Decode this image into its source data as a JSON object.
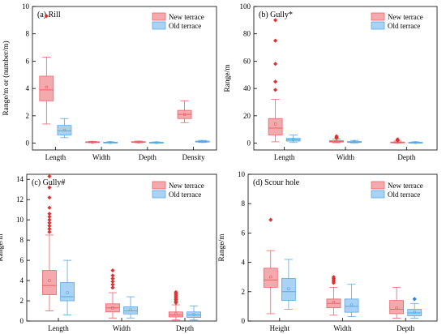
{
  "legend": {
    "items": [
      {
        "label": "New terrace",
        "fill": "#f4a9ad",
        "stroke": "#e8646b"
      },
      {
        "label": "Old terrace",
        "fill": "#a8d3f5",
        "stroke": "#5aa8e6"
      }
    ]
  },
  "colors": {
    "new_outlier": "#e03232",
    "old_outlier": "#2f7fd6",
    "median": "#d84a52"
  },
  "chart_data": [
    {
      "type": "box",
      "title": "(a) Rill",
      "ylabel": "Range/m or (number/m)",
      "ylim": [
        -0.5,
        10
      ],
      "yticks": [
        0,
        2,
        4,
        6,
        8,
        10
      ],
      "categories": [
        "Length",
        "Width",
        "Depth",
        "Density"
      ],
      "series": [
        {
          "name": "New terrace",
          "boxes": [
            {
              "whisker_low": 1.4,
              "q1": 3.1,
              "median": 3.9,
              "mean": 4.1,
              "q3": 4.9,
              "whisker_high": 6.3,
              "outliers": [
                9.3
              ]
            },
            {
              "whisker_low": 0.03,
              "q1": 0.05,
              "median": 0.07,
              "mean": 0.07,
              "q3": 0.1,
              "whisker_high": 0.13,
              "outliers": []
            },
            {
              "whisker_low": 0.03,
              "q1": 0.05,
              "median": 0.08,
              "mean": 0.08,
              "q3": 0.11,
              "whisker_high": 0.15,
              "outliers": []
            },
            {
              "whisker_low": 1.5,
              "q1": 1.8,
              "median": 2.1,
              "mean": 2.1,
              "q3": 2.4,
              "whisker_high": 3.1,
              "outliers": []
            }
          ]
        },
        {
          "name": "Old terrace",
          "boxes": [
            {
              "whisker_low": 0.4,
              "q1": 0.6,
              "median": 0.9,
              "mean": 0.95,
              "q3": 1.3,
              "whisker_high": 1.8,
              "outliers": []
            },
            {
              "whisker_low": 0.02,
              "q1": 0.04,
              "median": 0.05,
              "mean": 0.05,
              "q3": 0.07,
              "whisker_high": 0.1,
              "outliers": []
            },
            {
              "whisker_low": 0.01,
              "q1": 0.03,
              "median": 0.04,
              "mean": 0.04,
              "q3": 0.06,
              "whisker_high": 0.09,
              "outliers": []
            },
            {
              "whisker_low": 0.05,
              "q1": 0.08,
              "median": 0.12,
              "mean": 0.12,
              "q3": 0.15,
              "whisker_high": 0.2,
              "outliers": []
            }
          ]
        }
      ]
    },
    {
      "type": "box",
      "title": "(b) Gully*",
      "ylabel": "Range/m",
      "ylim": [
        -5,
        100
      ],
      "yticks": [
        0,
        20,
        40,
        60,
        80,
        100
      ],
      "categories": [
        "Length",
        "Width",
        "Depth"
      ],
      "series": [
        {
          "name": "New terrace",
          "boxes": [
            {
              "whisker_low": 1,
              "q1": 6,
              "median": 11,
              "mean": 14,
              "q3": 18,
              "whisker_high": 32,
              "outliers": [
                39,
                45,
                58,
                75,
                90
              ]
            },
            {
              "whisker_low": 0.3,
              "q1": 0.8,
              "median": 1.2,
              "mean": 1.4,
              "q3": 1.8,
              "whisker_high": 3,
              "outliers": [
                3.8,
                4.3,
                5.0
              ]
            },
            {
              "whisker_low": 0.1,
              "q1": 0.3,
              "median": 0.5,
              "mean": 0.6,
              "q3": 0.8,
              "whisker_high": 1.5,
              "outliers": [
                2.0,
                2.5,
                2.8
              ]
            }
          ]
        },
        {
          "name": "Old terrace",
          "boxes": [
            {
              "whisker_low": 0.5,
              "q1": 1.5,
              "median": 2.5,
              "mean": 2.8,
              "q3": 3.5,
              "whisker_high": 6,
              "outliers": []
            },
            {
              "whisker_low": 0.2,
              "q1": 0.5,
              "median": 0.8,
              "mean": 0.9,
              "q3": 1.2,
              "whisker_high": 2,
              "outliers": []
            },
            {
              "whisker_low": 0.1,
              "q1": 0.25,
              "median": 0.4,
              "mean": 0.45,
              "q3": 0.6,
              "whisker_high": 1,
              "outliers": []
            }
          ]
        }
      ]
    },
    {
      "type": "box",
      "title": "(c) Gully#",
      "ylabel": "Range/m",
      "ylim": [
        0,
        14.5
      ],
      "yticks": [
        0,
        2,
        4,
        6,
        8,
        10,
        12,
        14
      ],
      "categories": [
        "Length",
        "Width",
        "Depth"
      ],
      "series": [
        {
          "name": "New terrace",
          "boxes": [
            {
              "whisker_low": 1.0,
              "q1": 2.6,
              "median": 3.5,
              "mean": 4.0,
              "q3": 5.0,
              "whisker_high": 8.5,
              "outliers": [
                8.8,
                9.1,
                9.4,
                9.7,
                10.0,
                10.3,
                10.6,
                11.2,
                12.2,
                13.2,
                14.3
              ]
            },
            {
              "whisker_low": 0.3,
              "q1": 0.9,
              "median": 1.3,
              "mean": 1.3,
              "q3": 1.7,
              "whisker_high": 2.8,
              "outliers": [
                3.3,
                3.6,
                3.9,
                4.2,
                4.5,
                5.0
              ]
            },
            {
              "whisker_low": 0.1,
              "q1": 0.4,
              "median": 0.6,
              "mean": 0.7,
              "q3": 0.9,
              "whisker_high": 1.6,
              "outliers": [
                1.8,
                1.95,
                2.1,
                2.25,
                2.4,
                2.55,
                2.7,
                2.85
              ]
            }
          ]
        },
        {
          "name": "Old terrace",
          "boxes": [
            {
              "whisker_low": 0.6,
              "q1": 2.0,
              "median": 2.4,
              "mean": 2.8,
              "q3": 3.8,
              "whisker_high": 6.0,
              "outliers": []
            },
            {
              "whisker_low": 0.3,
              "q1": 0.7,
              "median": 1.0,
              "mean": 1.1,
              "q3": 1.4,
              "whisker_high": 2.4,
              "outliers": []
            },
            {
              "whisker_low": 0.1,
              "q1": 0.35,
              "median": 0.6,
              "mean": 0.65,
              "q3": 0.9,
              "whisker_high": 1.5,
              "outliers": []
            }
          ]
        }
      ]
    },
    {
      "type": "box",
      "title": "(d) Scour hole",
      "ylabel": "Range/m",
      "ylim": [
        0,
        10
      ],
      "yticks": [
        0,
        2,
        4,
        6,
        8,
        10
      ],
      "categories": [
        "Height",
        "Width",
        "Depth"
      ],
      "series": [
        {
          "name": "New terrace",
          "boxes": [
            {
              "whisker_low": 0.5,
              "q1": 2.3,
              "median": 2.8,
              "mean": 3.0,
              "q3": 3.6,
              "whisker_high": 4.8,
              "outliers": [
                6.9
              ]
            },
            {
              "whisker_low": 0.4,
              "q1": 0.9,
              "median": 1.2,
              "mean": 1.3,
              "q3": 1.5,
              "whisker_high": 2.3,
              "outliers": [
                2.6,
                2.7,
                2.8,
                2.9,
                3.0
              ]
            },
            {
              "whisker_low": 0.2,
              "q1": 0.5,
              "median": 0.8,
              "mean": 0.9,
              "q3": 1.4,
              "whisker_high": 2.3,
              "outliers": []
            }
          ]
        },
        {
          "name": "Old terrace",
          "boxes": [
            {
              "whisker_low": 0.8,
              "q1": 1.4,
              "median": 2.0,
              "mean": 2.2,
              "q3": 2.9,
              "whisker_high": 4.2,
              "outliers": []
            },
            {
              "whisker_low": 0.3,
              "q1": 0.6,
              "median": 1.0,
              "mean": 1.1,
              "q3": 1.5,
              "whisker_high": 2.5,
              "outliers": []
            },
            {
              "whisker_low": 0.2,
              "q1": 0.35,
              "median": 0.55,
              "mean": 0.6,
              "q3": 0.8,
              "whisker_high": 1.2,
              "outliers": [
                1.5
              ]
            }
          ]
        }
      ]
    }
  ]
}
